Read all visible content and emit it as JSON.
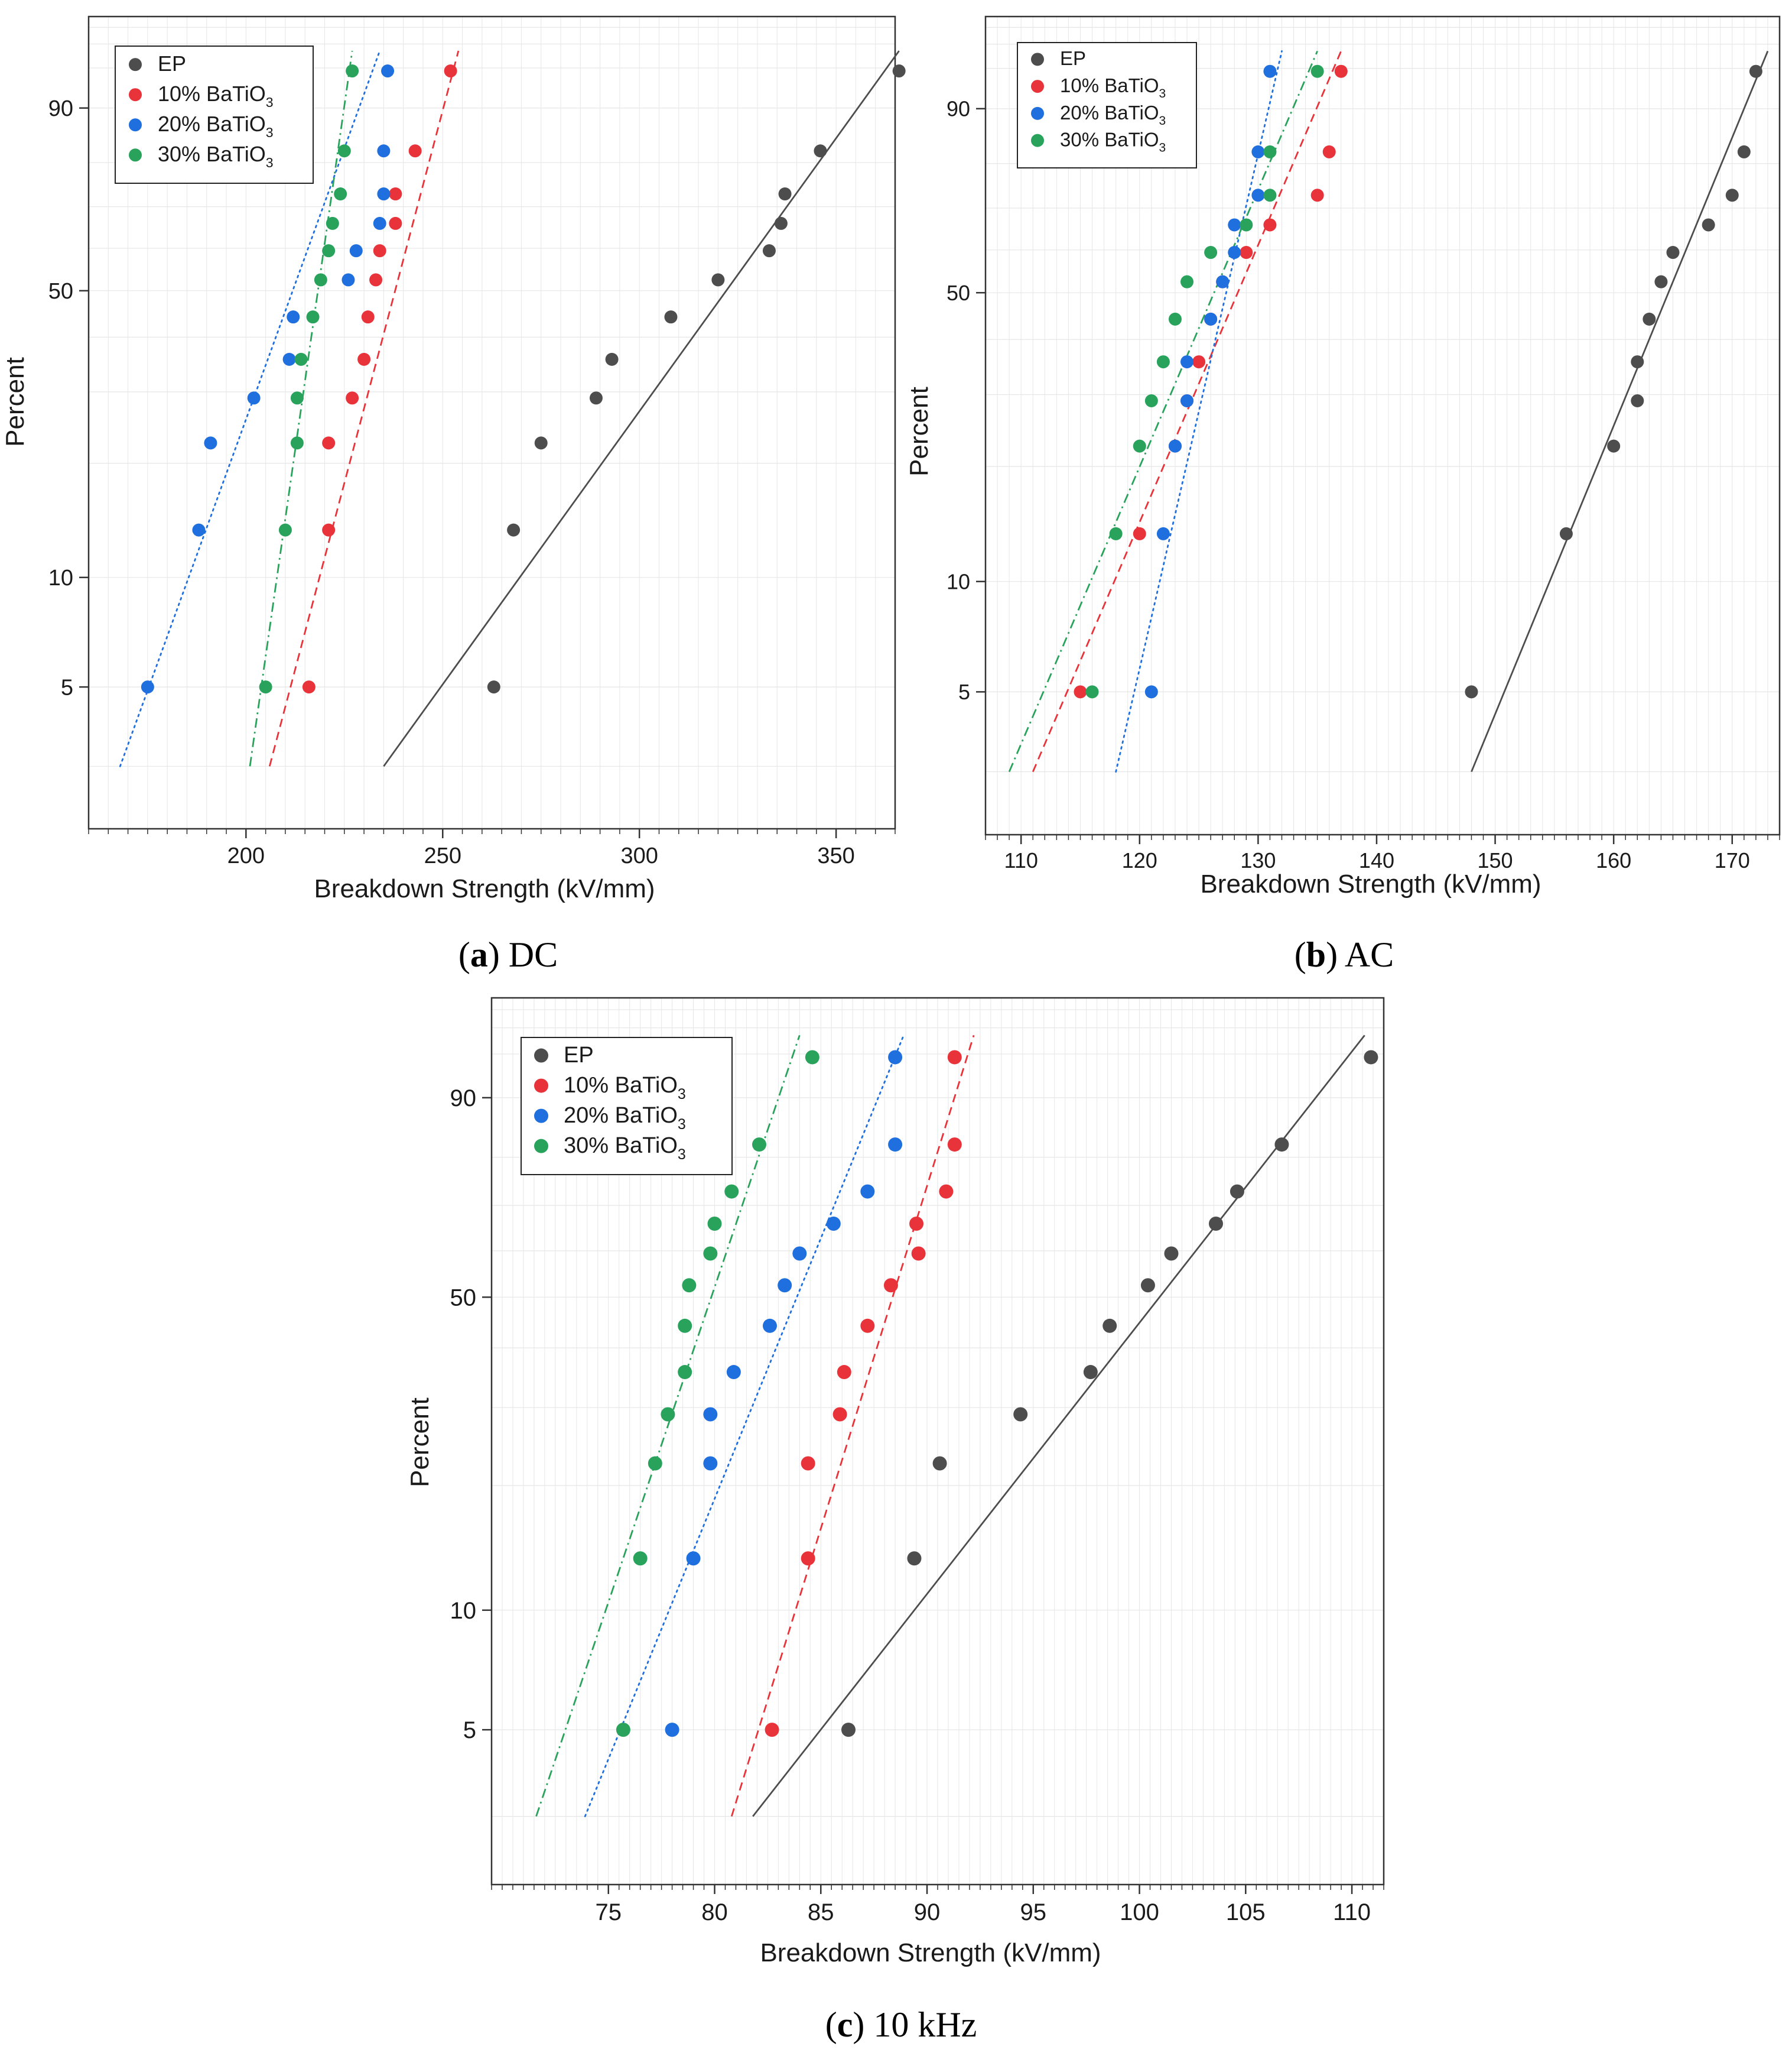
{
  "figure": {
    "x_axis_label": "Breakdown Strength (kV/mm)",
    "y_axis_label": "Percent",
    "legend": [
      {
        "label": "EP",
        "sub": "",
        "color": "#4d4d4d"
      },
      {
        "label": "10% BaTiO",
        "sub": "3",
        "color": "#e8333a"
      },
      {
        "label": "20% BaTiO",
        "sub": "3",
        "color": "#1f6fde"
      },
      {
        "label": "30% BaTiO",
        "sub": "3",
        "color": "#29a35c"
      }
    ],
    "colors": {
      "EP": "#4d4d4d",
      "BT10": "#e8333a",
      "BT20": "#1f6fde",
      "BT30": "#29a35c",
      "grid": "#e6e6e6"
    }
  },
  "chart_data": [
    {
      "type": "scatter",
      "panel": "(a) DC",
      "caption_letter": "a",
      "caption_text": "DC",
      "xlabel": "Breakdown Strength (kV/mm)",
      "ylabel": "Percent",
      "xlim": [
        160,
        365
      ],
      "xticks": [
        200,
        250,
        300,
        350
      ],
      "yticks": [
        5,
        10,
        50,
        90
      ],
      "yscale": "weibull",
      "grid": true,
      "legend_position": "top-left",
      "series": [
        {
          "name": "EP",
          "x": [
            263,
            268,
            275,
            289,
            293,
            308,
            320,
            333,
            336,
            337,
            346,
            366
          ],
          "y": [
            5.0,
            13.4,
            22.5,
            29.0,
            35.7,
            44.2,
            52.5,
            59.4,
            66.0,
            73.0,
            82.4,
            94.7
          ]
        },
        {
          "name": "10% BaTiO3",
          "x": [
            216,
            221,
            221,
            227,
            230,
            231,
            233,
            234,
            238,
            238,
            243,
            252
          ],
          "y": [
            5.0,
            13.4,
            22.5,
            29.0,
            35.7,
            44.2,
            52.5,
            59.4,
            66.0,
            73.0,
            82.4,
            94.7
          ]
        },
        {
          "name": "20% BaTiO3",
          "x": [
            175,
            188,
            191,
            202,
            211,
            212,
            226,
            228,
            234,
            235,
            235,
            236
          ],
          "y": [
            5.0,
            13.4,
            22.5,
            29.0,
            35.7,
            44.2,
            52.5,
            59.4,
            66.0,
            73.0,
            82.4,
            94.7
          ]
        },
        {
          "name": "30% BaTiO3",
          "x": [
            205,
            210,
            213,
            213,
            214,
            217,
            219,
            221,
            222,
            224,
            225,
            227
          ],
          "y": [
            5.0,
            13.4,
            22.5,
            29.0,
            35.7,
            44.2,
            52.5,
            59.4,
            66.0,
            73.0,
            82.4,
            94.7
          ]
        }
      ],
      "fits": [
        {
          "name": "EP",
          "style": "solid",
          "x": [
            235,
            366
          ],
          "y": [
            3,
            96.5
          ]
        },
        {
          "name": "10% BaTiO3",
          "style": "dashed",
          "x": [
            206,
            254
          ],
          "y": [
            3,
            96.5
          ]
        },
        {
          "name": "20% BaTiO3",
          "style": "dotted",
          "x": [
            168,
            234
          ],
          "y": [
            3,
            96.5
          ]
        },
        {
          "name": "30% BaTiO3",
          "style": "dashdot",
          "x": [
            201,
            227
          ],
          "y": [
            3,
            96.5
          ]
        }
      ]
    },
    {
      "type": "scatter",
      "panel": "(b) AC",
      "caption_letter": "b",
      "caption_text": "AC",
      "xlabel": "Breakdown Strength (kV/mm)",
      "ylabel": "Percent",
      "xlim": [
        107,
        174
      ],
      "xticks": [
        110,
        120,
        130,
        140,
        150,
        160,
        170
      ],
      "yticks": [
        5,
        10,
        50,
        90
      ],
      "yscale": "weibull",
      "grid": true,
      "legend_position": "top-left",
      "series": [
        {
          "name": "EP",
          "x": [
            148,
            156,
            160,
            162,
            162,
            163,
            164,
            165,
            168,
            170,
            171,
            172
          ],
          "y": [
            5.0,
            13.4,
            22.5,
            29.0,
            35.7,
            44.2,
            52.5,
            59.4,
            66.0,
            73.0,
            82.4,
            94.7
          ]
        },
        {
          "name": "10% BaTiO3",
          "x": [
            115,
            120,
            123,
            124,
            125,
            126,
            127,
            129,
            131,
            135,
            136,
            137
          ],
          "y": [
            5.0,
            13.4,
            22.5,
            29.0,
            35.7,
            44.2,
            52.5,
            59.4,
            66.0,
            73.0,
            82.4,
            94.7
          ]
        },
        {
          "name": "20% BaTiO3",
          "x": [
            121,
            122,
            123,
            124,
            124,
            126,
            127,
            128,
            128,
            130,
            130,
            131
          ],
          "y": [
            5.0,
            13.4,
            22.5,
            29.0,
            35.7,
            44.2,
            52.5,
            59.4,
            66.0,
            73.0,
            82.4,
            94.7
          ]
        },
        {
          "name": "30% BaTiO3",
          "x": [
            116,
            118,
            120,
            121,
            122,
            123,
            124,
            126,
            129,
            131,
            131,
            135
          ],
          "y": [
            5.0,
            13.4,
            22.5,
            29.0,
            35.7,
            44.2,
            52.5,
            59.4,
            66.0,
            73.0,
            82.4,
            94.7
          ]
        }
      ],
      "fits": [
        {
          "name": "EP",
          "style": "solid",
          "x": [
            148,
            173
          ],
          "y": [
            3,
            96.5
          ]
        },
        {
          "name": "10% BaTiO3",
          "style": "dashed",
          "x": [
            111,
            137
          ],
          "y": [
            3,
            96.5
          ]
        },
        {
          "name": "20% BaTiO3",
          "style": "dotted",
          "x": [
            118,
            132
          ],
          "y": [
            3,
            96.5
          ]
        },
        {
          "name": "30% BaTiO3",
          "style": "dashdot",
          "x": [
            109,
            135
          ],
          "y": [
            3,
            96.5
          ]
        }
      ]
    },
    {
      "type": "scatter",
      "panel": "(c) 10 kHz",
      "caption_letter": "c",
      "caption_text": "10 kHz",
      "xlabel": "Breakdown Strength (kV/mm)",
      "ylabel": "Percent",
      "xlim": [
        69.5,
        111.5
      ],
      "xticks": [
        75,
        80,
        85,
        90,
        95,
        100,
        105,
        110
      ],
      "yticks": [
        5,
        10,
        50,
        90
      ],
      "yscale": "weibull",
      "grid": true,
      "legend_position": "top-left",
      "series": [
        {
          "name": "EP",
          "x": [
            86.3,
            89.4,
            90.6,
            94.4,
            97.7,
            98.6,
            100.4,
            101.5,
            103.6,
            104.6,
            106.7,
            110.9
          ],
          "y": [
            5.0,
            13.4,
            22.5,
            29.0,
            35.7,
            44.2,
            52.5,
            59.4,
            66.0,
            73.0,
            82.4,
            94.7
          ]
        },
        {
          "name": "10% BaTiO3",
          "x": [
            82.7,
            84.4,
            84.4,
            85.9,
            86.1,
            87.2,
            88.3,
            89.6,
            89.5,
            90.9,
            91.3,
            91.3
          ],
          "y": [
            5.0,
            13.4,
            22.5,
            29.0,
            35.7,
            44.2,
            52.5,
            59.4,
            66.0,
            73.0,
            82.4,
            94.7
          ]
        },
        {
          "name": "20% BaTiO3",
          "x": [
            78.0,
            79.0,
            79.8,
            79.8,
            80.9,
            82.6,
            83.3,
            84.0,
            85.6,
            87.2,
            88.5,
            88.5
          ],
          "y": [
            5.0,
            13.4,
            22.5,
            29.0,
            35.7,
            44.2,
            52.5,
            59.4,
            66.0,
            73.0,
            82.4,
            94.7
          ]
        },
        {
          "name": "30% BaTiO3",
          "x": [
            75.7,
            76.5,
            77.2,
            77.8,
            78.6,
            78.6,
            78.8,
            79.8,
            80.0,
            80.8,
            82.1,
            84.6
          ],
          "y": [
            5.0,
            13.4,
            22.5,
            29.0,
            35.7,
            44.2,
            52.5,
            59.4,
            66.0,
            73.0,
            82.4,
            94.7
          ]
        }
      ],
      "fits": [
        {
          "name": "EP",
          "style": "solid",
          "x": [
            81.8,
            110.6
          ],
          "y": [
            3,
            96.5
          ]
        },
        {
          "name": "10% BaTiO3",
          "style": "dashed",
          "x": [
            80.8,
            92.2
          ],
          "y": [
            3,
            96.5
          ]
        },
        {
          "name": "20% BaTiO3",
          "style": "dotted",
          "x": [
            73.9,
            88.9
          ],
          "y": [
            3,
            96.5
          ]
        },
        {
          "name": "30% BaTiO3",
          "style": "dashdot",
          "x": [
            71.6,
            84.0
          ],
          "y": [
            3,
            96.5
          ]
        }
      ]
    }
  ]
}
